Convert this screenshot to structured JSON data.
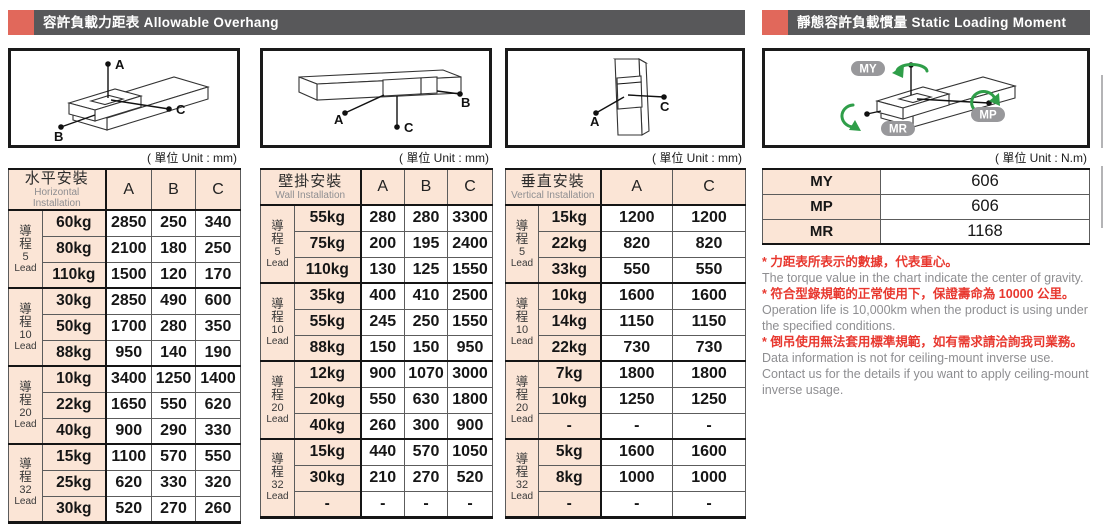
{
  "headers": {
    "left": "容許負載力距表 Allowable Overhang",
    "right": "靜態容許負載慣量 Static Loading Moment"
  },
  "units": {
    "mm": "( 單位 Unit : mm)",
    "nm": "( 單位 Unit : N.m)"
  },
  "diagram_labels": {
    "a": "A",
    "b": "B",
    "c": "C",
    "my": "MY",
    "mp": "MP",
    "mr": "MR"
  },
  "tables": [
    {
      "title_zh": "水平安裝",
      "title_en": "Horizontal Installation",
      "columns": [
        "A",
        "B",
        "C"
      ],
      "groups": [
        {
          "lead_zh": "導程",
          "lead_num": "5",
          "lead_en": "Lead",
          "rows": [
            {
              "load": "60kg",
              "values": [
                "2850",
                "250",
                "340"
              ]
            },
            {
              "load": "80kg",
              "values": [
                "2100",
                "180",
                "250"
              ]
            },
            {
              "load": "110kg",
              "values": [
                "1500",
                "120",
                "170"
              ]
            }
          ]
        },
        {
          "lead_zh": "導程",
          "lead_num": "10",
          "lead_en": "Lead",
          "rows": [
            {
              "load": "30kg",
              "values": [
                "2850",
                "490",
                "600"
              ]
            },
            {
              "load": "50kg",
              "values": [
                "1700",
                "280",
                "350"
              ]
            },
            {
              "load": "88kg",
              "values": [
                "950",
                "140",
                "190"
              ]
            }
          ]
        },
        {
          "lead_zh": "導程",
          "lead_num": "20",
          "lead_en": "Lead",
          "rows": [
            {
              "load": "10kg",
              "values": [
                "3400",
                "1250",
                "1400"
              ]
            },
            {
              "load": "22kg",
              "values": [
                "1650",
                "550",
                "620"
              ]
            },
            {
              "load": "40kg",
              "values": [
                "900",
                "290",
                "330"
              ]
            }
          ]
        },
        {
          "lead_zh": "導程",
          "lead_num": "32",
          "lead_en": "Lead",
          "rows": [
            {
              "load": "15kg",
              "values": [
                "1100",
                "570",
                "550"
              ]
            },
            {
              "load": "25kg",
              "values": [
                "620",
                "330",
                "320"
              ]
            },
            {
              "load": "30kg",
              "values": [
                "520",
                "270",
                "260"
              ]
            }
          ]
        }
      ]
    },
    {
      "title_zh": "壁掛安裝",
      "title_en": "Wall Installation",
      "columns": [
        "A",
        "B",
        "C"
      ],
      "groups": [
        {
          "lead_zh": "導程",
          "lead_num": "5",
          "lead_en": "Lead",
          "rows": [
            {
              "load": "55kg",
              "values": [
                "280",
                "280",
                "3300"
              ]
            },
            {
              "load": "75kg",
              "values": [
                "200",
                "195",
                "2400"
              ]
            },
            {
              "load": "110kg",
              "values": [
                "130",
                "125",
                "1550"
              ]
            }
          ]
        },
        {
          "lead_zh": "導程",
          "lead_num": "10",
          "lead_en": "Lead",
          "rows": [
            {
              "load": "35kg",
              "values": [
                "400",
                "410",
                "2500"
              ]
            },
            {
              "load": "55kg",
              "values": [
                "245",
                "250",
                "1550"
              ]
            },
            {
              "load": "88kg",
              "values": [
                "150",
                "150",
                "950"
              ]
            }
          ]
        },
        {
          "lead_zh": "導程",
          "lead_num": "20",
          "lead_en": "Lead",
          "rows": [
            {
              "load": "12kg",
              "values": [
                "900",
                "1070",
                "3000"
              ]
            },
            {
              "load": "20kg",
              "values": [
                "550",
                "630",
                "1800"
              ]
            },
            {
              "load": "40kg",
              "values": [
                "260",
                "300",
                "900"
              ]
            }
          ]
        },
        {
          "lead_zh": "導程",
          "lead_num": "32",
          "lead_en": "Lead",
          "rows": [
            {
              "load": "15kg",
              "values": [
                "440",
                "570",
                "1050"
              ]
            },
            {
              "load": "30kg",
              "values": [
                "210",
                "270",
                "520"
              ]
            },
            {
              "load": "-",
              "values": [
                "-",
                "-",
                "-"
              ]
            }
          ]
        }
      ]
    },
    {
      "title_zh": "垂直安裝",
      "title_en": "Vertical Installation",
      "columns": [
        "A",
        "C"
      ],
      "groups": [
        {
          "lead_zh": "導程",
          "lead_num": "5",
          "lead_en": "Lead",
          "rows": [
            {
              "load": "15kg",
              "values": [
                "1200",
                "1200"
              ]
            },
            {
              "load": "22kg",
              "values": [
                "820",
                "820"
              ]
            },
            {
              "load": "33kg",
              "values": [
                "550",
                "550"
              ]
            }
          ]
        },
        {
          "lead_zh": "導程",
          "lead_num": "10",
          "lead_en": "Lead",
          "rows": [
            {
              "load": "10kg",
              "values": [
                "1600",
                "1600"
              ]
            },
            {
              "load": "14kg",
              "values": [
                "1150",
                "1150"
              ]
            },
            {
              "load": "22kg",
              "values": [
                "730",
                "730"
              ]
            }
          ]
        },
        {
          "lead_zh": "導程",
          "lead_num": "20",
          "lead_en": "Lead",
          "rows": [
            {
              "load": "7kg",
              "values": [
                "1800",
                "1800"
              ]
            },
            {
              "load": "10kg",
              "values": [
                "1250",
                "1250"
              ]
            },
            {
              "load": "-",
              "values": [
                "-",
                "-"
              ]
            }
          ]
        },
        {
          "lead_zh": "導程",
          "lead_num": "32",
          "lead_en": "Lead",
          "rows": [
            {
              "load": "5kg",
              "values": [
                "1600",
                "1600"
              ]
            },
            {
              "load": "8kg",
              "values": [
                "1000",
                "1000"
              ]
            },
            {
              "load": "-",
              "values": [
                "-",
                "-"
              ]
            }
          ]
        }
      ]
    }
  ],
  "moment": {
    "rows": [
      {
        "label": "MY",
        "value": "606"
      },
      {
        "label": "MP",
        "value": "606"
      },
      {
        "label": "MR",
        "value": "1168"
      }
    ]
  },
  "notes": [
    {
      "zh": "* 力距表所表示的數據，代表重心。",
      "en1": "The torque value in the chart indicate the center of gravity."
    },
    {
      "zh": "* 符合型錄規範的正常使用下，保證壽命為 10000 公里。",
      "en1": "Operation life is 10,000km when the product is using under the specified conditions."
    },
    {
      "zh": "* 倒吊使用無法套用標準規範，如有需求請洽詢我司業務。",
      "en1": "Data information is not for ceiling-mount inverse use.",
      "en2": "Contact us for the details if you want to apply ceiling-mount inverse usage."
    }
  ]
}
